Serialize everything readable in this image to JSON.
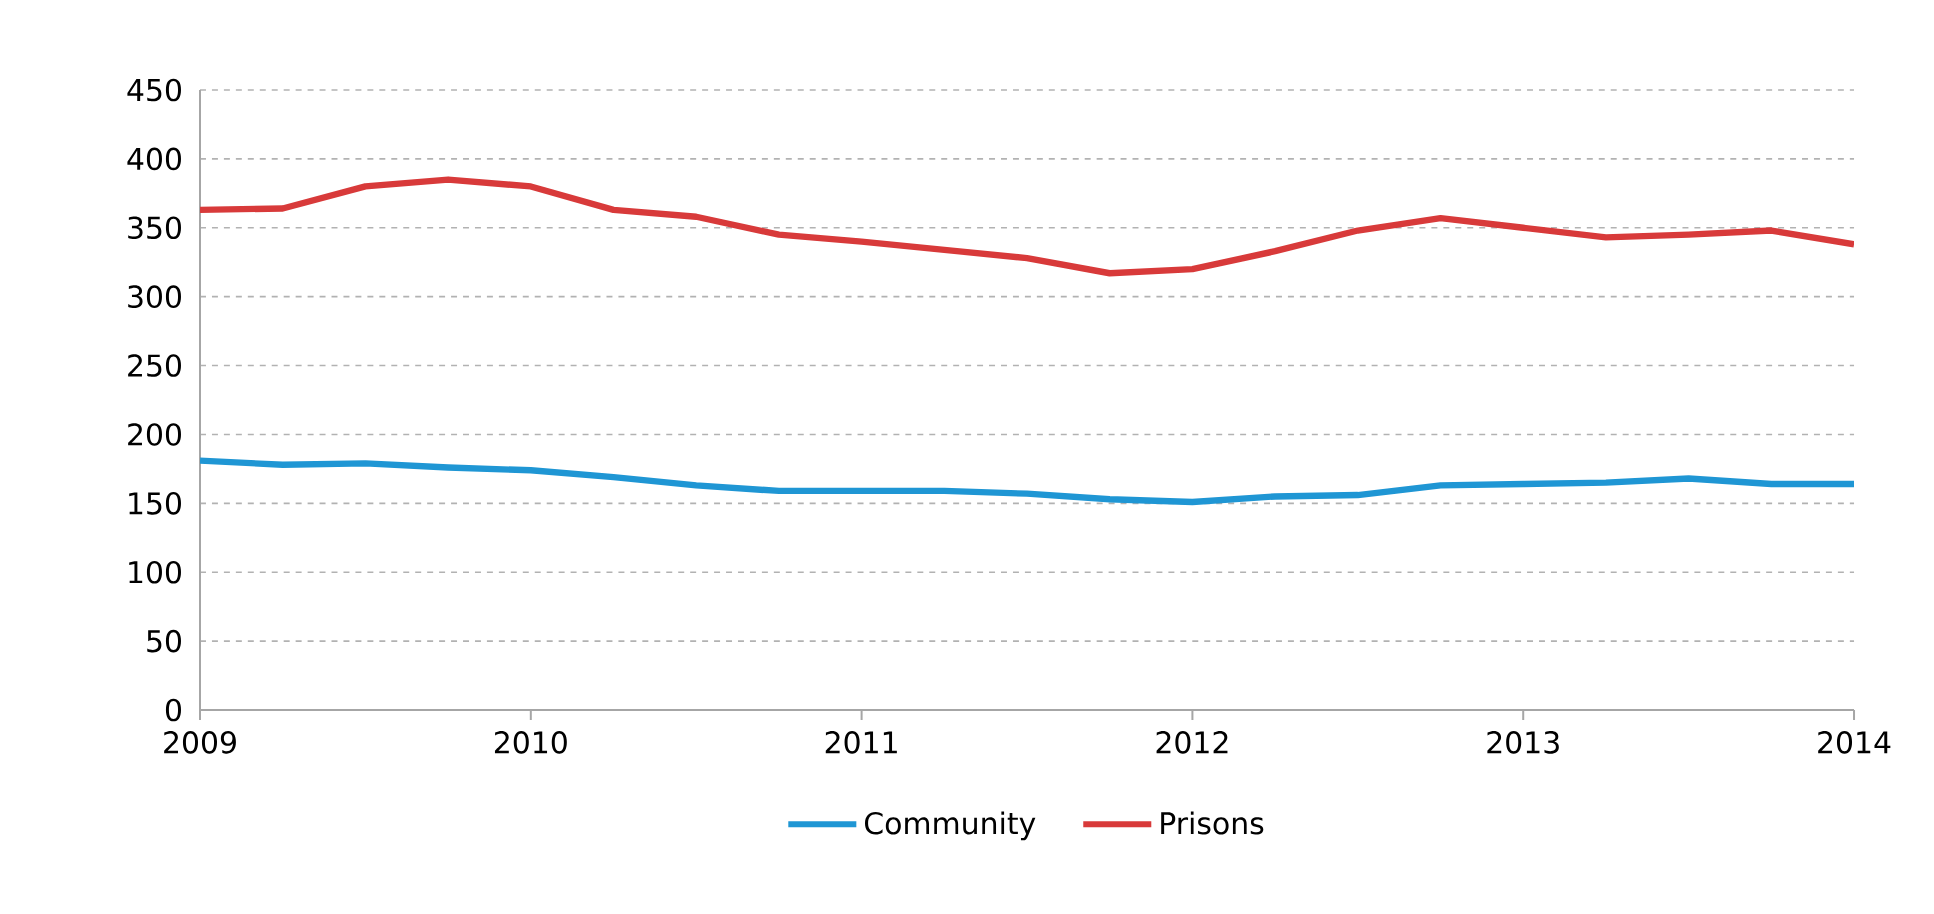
{
  "chart_data": {
    "type": "line",
    "x": [
      2009,
      2009.25,
      2009.5,
      2009.75,
      2010,
      2010.25,
      2010.5,
      2010.75,
      2011,
      2011.25,
      2011.5,
      2011.75,
      2012,
      2012.25,
      2012.5,
      2012.75,
      2013,
      2013.25,
      2013.5,
      2013.75,
      2014
    ],
    "series": [
      {
        "name": "Community",
        "color": "#1f96d4",
        "values": [
          181,
          178,
          179,
          176,
          174,
          169,
          163,
          159,
          159,
          159,
          157,
          153,
          151,
          155,
          156,
          163,
          164,
          165,
          168,
          164,
          164
        ]
      },
      {
        "name": "Prisons",
        "color": "#d83a3a",
        "values": [
          363,
          364,
          380,
          385,
          380,
          363,
          358,
          345,
          340,
          334,
          328,
          317,
          320,
          333,
          348,
          357,
          350,
          343,
          345,
          348,
          338
        ]
      }
    ],
    "xlim": [
      2009,
      2014
    ],
    "xticks": [
      2009,
      2010,
      2011,
      2012,
      2013,
      2014
    ],
    "ylim": [
      0,
      450
    ],
    "yticks": [
      0,
      50,
      100,
      150,
      200,
      250,
      300,
      350,
      400,
      450
    ],
    "grid": "y",
    "legend": "bottom",
    "marker": "none",
    "line_style": "solid"
  }
}
